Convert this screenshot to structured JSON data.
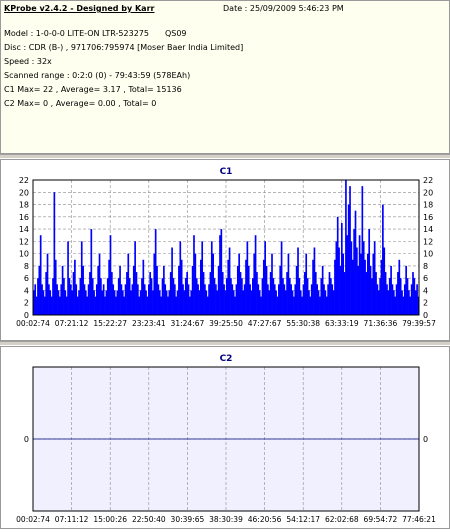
{
  "info": {
    "app_title": "KProbe v2.4.2 - Designed by Karr",
    "date": "Date : 25/09/2009 5:46:23 PM",
    "model": "Model : 1-0-0-0 LITE-ON LTR-523275",
    "model_code": "QS09",
    "disc": "Disc : CDR (B-) , 971706:795974 [Moser Baer India Limited]",
    "speed": "Speed : 32x",
    "scanned_range": "Scanned range : 0:2:0 (0) - 79:43:59 (578EAh)",
    "c1_summary": "C1 Max= 22 , Average= 3.17 , Total= 15136",
    "c2_summary": "C2 Max= 0 , Average= 0.00 , Total= 0"
  },
  "colors": {
    "c1_bar": "#0000ff",
    "c2_plot_bg": "#f0f0ff",
    "title": "#000080"
  },
  "chart_data": [
    {
      "type": "bar",
      "title": "C1",
      "xlabel": "",
      "ylabel": "",
      "ylim": [
        0,
        22
      ],
      "yticks": [
        0,
        2,
        4,
        6,
        8,
        10,
        12,
        14,
        16,
        18,
        20,
        22
      ],
      "xtick_labels": [
        "00:02:74",
        "07:21:12",
        "15:22:27",
        "23:23:41",
        "31:24:67",
        "39:25:50",
        "47:27:67",
        "55:30:38",
        "63:33:19",
        "71:36:36",
        "79:39:57"
      ],
      "grid": true,
      "values": [
        4,
        5,
        3,
        6,
        8,
        13,
        5,
        4,
        3,
        7,
        10,
        5,
        4,
        3,
        6,
        20,
        9,
        5,
        4,
        3,
        5,
        8,
        6,
        4,
        3,
        12,
        6,
        5,
        4,
        7,
        9,
        5,
        3,
        4,
        6,
        12,
        8,
        5,
        4,
        3,
        5,
        7,
        14,
        6,
        4,
        3,
        5,
        8,
        10,
        6,
        4,
        5,
        3,
        4,
        6,
        9,
        13,
        7,
        5,
        4,
        3,
        4,
        6,
        8,
        5,
        4,
        3,
        5,
        7,
        10,
        6,
        4,
        5,
        8,
        12,
        7,
        5,
        3,
        4,
        6,
        9,
        5,
        4,
        3,
        5,
        7,
        6,
        4,
        10,
        14,
        8,
        5,
        4,
        3,
        6,
        8,
        5,
        4,
        3,
        4,
        7,
        11,
        6,
        5,
        3,
        4,
        8,
        12,
        9,
        5,
        4,
        6,
        7,
        5,
        3,
        4,
        8,
        13,
        10,
        6,
        5,
        4,
        9,
        12,
        7,
        5,
        4,
        3,
        5,
        7,
        12,
        10,
        6,
        5,
        4,
        8,
        13,
        14,
        7,
        5,
        4,
        6,
        9,
        11,
        6,
        5,
        4,
        3,
        5,
        8,
        10,
        7,
        6,
        4,
        5,
        9,
        12,
        8,
        5,
        4,
        6,
        10,
        13,
        7,
        5,
        4,
        3,
        6,
        9,
        12,
        8,
        5,
        4,
        7,
        10,
        6,
        5,
        4,
        3,
        5,
        8,
        12,
        6,
        5,
        4,
        7,
        10,
        6,
        5,
        4,
        3,
        5,
        8,
        11,
        6,
        4,
        3,
        5,
        7,
        10,
        6,
        4,
        3,
        5,
        9,
        11,
        7,
        5,
        4,
        3,
        6,
        8,
        5,
        4,
        3,
        5,
        7,
        6,
        5,
        4,
        9,
        12,
        16,
        11,
        8,
        15,
        10,
        7,
        22,
        13,
        18,
        21,
        12,
        9,
        14,
        17,
        11,
        8,
        13,
        10,
        21,
        12,
        9,
        7,
        10,
        14,
        8,
        6,
        10,
        12,
        7,
        5,
        4,
        6,
        9,
        18,
        11,
        7,
        5,
        4,
        6,
        8,
        5,
        4,
        3,
        5,
        7,
        9,
        6,
        4,
        3,
        5,
        8,
        6,
        4,
        3,
        5,
        7,
        6,
        4,
        5,
        3
      ]
    },
    {
      "type": "line",
      "title": "C2",
      "xlabel": "",
      "ylabel": "",
      "ylim": [
        -1,
        1
      ],
      "yticks": [
        0
      ],
      "xtick_labels": [
        "00:02:74",
        "07:11:12",
        "15:00:26",
        "22:50:40",
        "30:39:65",
        "38:30:39",
        "46:20:56",
        "54:12:17",
        "62:02:68",
        "69:54:72",
        "77:46:21"
      ],
      "grid": true,
      "values": [
        0
      ]
    }
  ]
}
